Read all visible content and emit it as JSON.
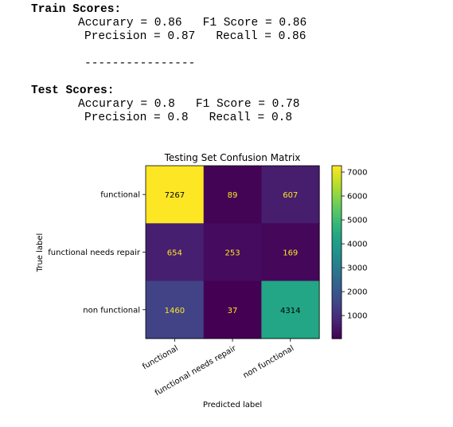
{
  "scores": {
    "train_heading": "Train Scores:",
    "train_line1": "Accurary = 0.86   F1 Score = 0.86",
    "train_line2": "Precision = 0.87   Recall = 0.86",
    "separator": "----------------",
    "test_heading": "Test Scores:",
    "test_line1": "Accurary = 0.8   F1 Score = 0.78",
    "test_line2": "Precision = 0.8   Recall = 0.8"
  },
  "chart_data": {
    "type": "heatmap",
    "title": "Testing Set Confusion Matrix",
    "xlabel": "Predicted label",
    "ylabel": "True label",
    "x_categories": [
      "functional",
      "functional needs repair",
      "non functional"
    ],
    "y_categories": [
      "functional",
      "functional needs repair",
      "non functional"
    ],
    "values": [
      [
        7267,
        89,
        607
      ],
      [
        654,
        253,
        169
      ],
      [
        1460,
        37,
        4314
      ]
    ],
    "colormap": "viridis",
    "colorbar_ticks": [
      1000,
      2000,
      3000,
      4000,
      5000,
      6000,
      7000
    ],
    "colorbar_range": [
      37,
      7267
    ],
    "text_color_dark_cells": "#fde725",
    "text_color_light_cells": "#000000"
  }
}
